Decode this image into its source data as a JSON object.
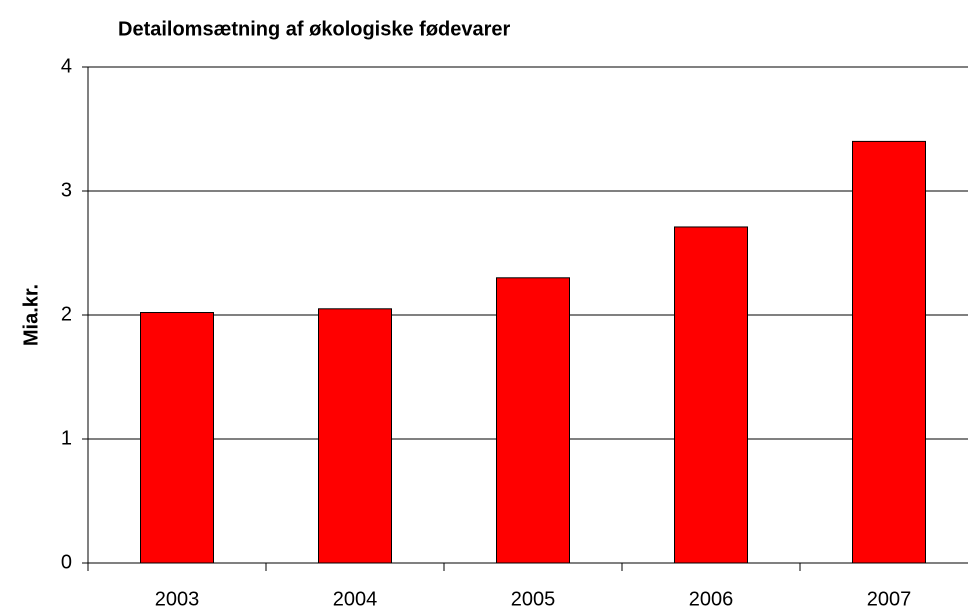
{
  "chart_data": {
    "type": "bar",
    "title": "Detailomsætning af økologiske fødevarer",
    "y_label": "Mia.kr.",
    "categories": [
      "2003",
      "2004",
      "2005",
      "2006",
      "2007"
    ],
    "values": [
      2.02,
      2.05,
      2.3,
      2.71,
      3.4
    ],
    "color": "#ff0000",
    "ylim": [
      0,
      4
    ],
    "yticks": [
      0,
      1,
      2,
      3,
      4
    ],
    "grid": true
  }
}
